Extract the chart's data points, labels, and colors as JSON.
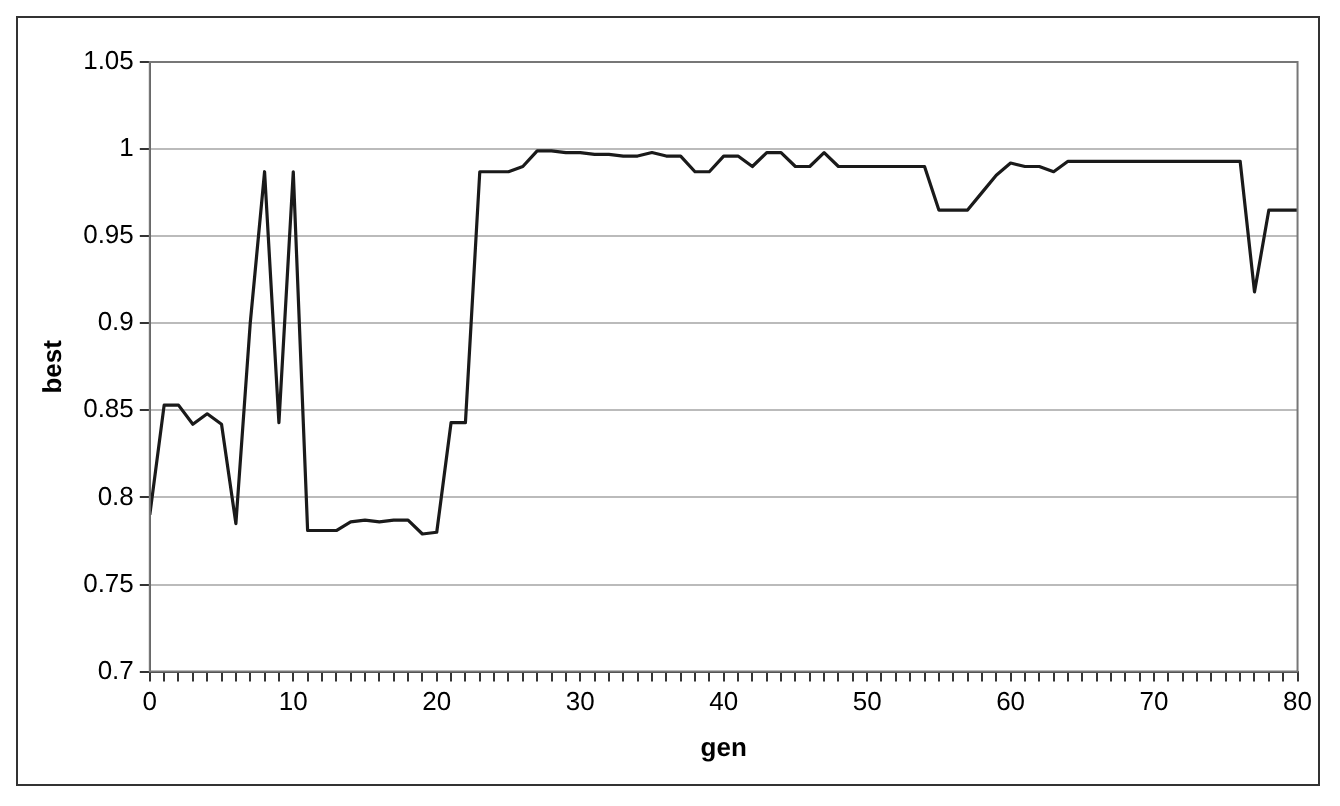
{
  "chart_data": {
    "type": "line",
    "xlabel": "gen",
    "ylabel": "best",
    "x": [
      0,
      1,
      2,
      3,
      4,
      5,
      6,
      7,
      8,
      9,
      10,
      11,
      12,
      13,
      14,
      15,
      16,
      17,
      18,
      19,
      20,
      21,
      22,
      23,
      24,
      25,
      26,
      27,
      28,
      29,
      30,
      31,
      32,
      33,
      34,
      35,
      36,
      37,
      38,
      39,
      40,
      41,
      42,
      43,
      44,
      45,
      46,
      47,
      48,
      49,
      50,
      51,
      52,
      53,
      54,
      55,
      56,
      57,
      58,
      59,
      60,
      61,
      62,
      63,
      64,
      65,
      66,
      67,
      68,
      69,
      70,
      71,
      72,
      73,
      74,
      75,
      76,
      77,
      78,
      79,
      80
    ],
    "series": [
      {
        "color": "#1a1a1a",
        "values": [
          0.79,
          0.853,
          0.853,
          0.842,
          0.848,
          0.842,
          0.785,
          0.9,
          0.987,
          0.843,
          0.987,
          0.781,
          0.781,
          0.781,
          0.786,
          0.787,
          0.786,
          0.787,
          0.787,
          0.779,
          0.78,
          0.843,
          0.843,
          0.987,
          0.987,
          0.987,
          0.99,
          0.999,
          0.999,
          0.998,
          0.998,
          0.997,
          0.997,
          0.996,
          0.996,
          0.998,
          0.996,
          0.996,
          0.987,
          0.987,
          0.996,
          0.996,
          0.99,
          0.998,
          0.998,
          0.99,
          0.99,
          0.998,
          0.99,
          0.99,
          0.99,
          0.99,
          0.99,
          0.99,
          0.99,
          0.965,
          0.965,
          0.965,
          0.975,
          0.985,
          0.992,
          0.99,
          0.99,
          0.987,
          0.993,
          0.993,
          0.993,
          0.993,
          0.993,
          0.993,
          0.993,
          0.993,
          0.993,
          0.993,
          0.993,
          0.993,
          0.993,
          0.918,
          0.965,
          0.965,
          0.965
        ]
      }
    ],
    "xlim": [
      0,
      80
    ],
    "xticks": [
      0,
      {
        "value": 1,
        "label": null
      },
      {
        "value": 2,
        "label": null
      },
      {
        "value": 3,
        "label": null
      },
      {
        "value": 4,
        "label": null
      },
      {
        "value": 5,
        "label": null
      },
      {
        "value": 6,
        "label": null
      },
      {
        "value": 7,
        "label": null
      },
      {
        "value": 8,
        "label": null
      },
      {
        "value": 9,
        "label": null
      },
      10,
      {
        "value": 11,
        "label": null
      },
      {
        "value": 12,
        "label": null
      },
      {
        "value": 13,
        "label": null
      },
      {
        "value": 14,
        "label": null
      },
      {
        "value": 15,
        "label": null
      },
      {
        "value": 16,
        "label": null
      },
      {
        "value": 17,
        "label": null
      },
      {
        "value": 18,
        "label": null
      },
      {
        "value": 19,
        "label": null
      },
      20,
      {
        "value": 21,
        "label": null
      },
      {
        "value": 22,
        "label": null
      },
      {
        "value": 23,
        "label": null
      },
      {
        "value": 24,
        "label": null
      },
      {
        "value": 25,
        "label": null
      },
      {
        "value": 26,
        "label": null
      },
      {
        "value": 27,
        "label": null
      },
      {
        "value": 28,
        "label": null
      },
      {
        "value": 29,
        "label": null
      },
      30,
      {
        "value": 31,
        "label": null
      },
      {
        "value": 32,
        "label": null
      },
      {
        "value": 33,
        "label": null
      },
      {
        "value": 34,
        "label": null
      },
      {
        "value": 35,
        "label": null
      },
      {
        "value": 36,
        "label": null
      },
      {
        "value": 37,
        "label": null
      },
      {
        "value": 38,
        "label": null
      },
      {
        "value": 39,
        "label": null
      },
      40,
      {
        "value": 41,
        "label": null
      },
      {
        "value": 42,
        "label": null
      },
      {
        "value": 43,
        "label": null
      },
      {
        "value": 44,
        "label": null
      },
      {
        "value": 45,
        "label": null
      },
      {
        "value": 46,
        "label": null
      },
      {
        "value": 47,
        "label": null
      },
      {
        "value": 48,
        "label": null
      },
      {
        "value": 49,
        "label": null
      },
      50,
      {
        "value": 51,
        "label": null
      },
      {
        "value": 52,
        "label": null
      },
      {
        "value": 53,
        "label": null
      },
      {
        "value": 54,
        "label": null
      },
      {
        "value": 55,
        "label": null
      },
      {
        "value": 56,
        "label": null
      },
      {
        "value": 57,
        "label": null
      },
      {
        "value": 58,
        "label": null
      },
      {
        "value": 59,
        "label": null
      },
      60,
      {
        "value": 61,
        "label": null
      },
      {
        "value": 62,
        "label": null
      },
      {
        "value": 63,
        "label": null
      },
      {
        "value": 64,
        "label": null
      },
      {
        "value": 65,
        "label": null
      },
      {
        "value": 66,
        "label": null
      },
      {
        "value": 67,
        "label": null
      },
      {
        "value": 68,
        "label": null
      },
      {
        "value": 69,
        "label": null
      },
      70,
      {
        "value": 71,
        "label": null
      },
      {
        "value": 72,
        "label": null
      },
      {
        "value": 73,
        "label": null
      },
      {
        "value": 74,
        "label": null
      },
      {
        "value": 75,
        "label": null
      },
      {
        "value": 76,
        "label": null
      },
      {
        "value": 77,
        "label": null
      },
      {
        "value": 78,
        "label": null
      },
      {
        "value": 79,
        "label": null
      },
      80
    ],
    "ylim": [
      0.7,
      1.05
    ],
    "yticks": [
      0.7,
      0.75,
      0.8,
      0.85,
      0.9,
      0.95,
      1,
      1.05
    ],
    "grid": "y",
    "legend": false,
    "marker": "none",
    "line_style": "solid"
  }
}
